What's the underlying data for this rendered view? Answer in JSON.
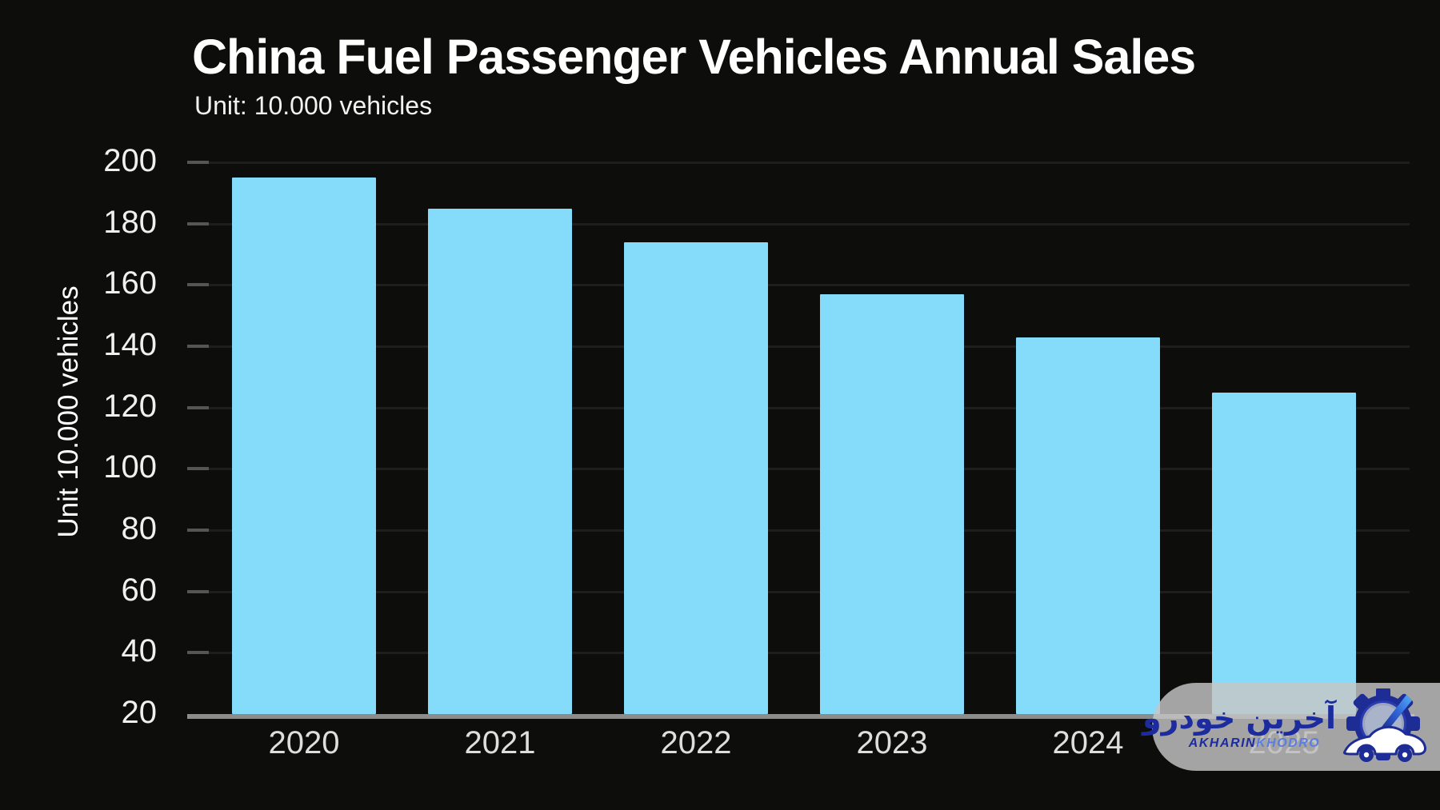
{
  "header": {
    "title": "China Fuel Passenger Vehicles Annual Sales",
    "subtitle": "Unit: 10.000 vehicles"
  },
  "chart_data": {
    "type": "bar",
    "title": "China Fuel Passenger Vehicles Annual Sales",
    "subtitle": "Unit: 10.000 vehicles",
    "categories": [
      "2020",
      "2021",
      "2022",
      "2023",
      "2024",
      "2025"
    ],
    "values": [
      195,
      185,
      174,
      157,
      143,
      125
    ],
    "xlabel": "",
    "ylabel": "Unit 10.000 vehicles",
    "ylim": [
      20,
      200
    ],
    "yticks": [
      200,
      180,
      160,
      140,
      120,
      100,
      80,
      60,
      40,
      20
    ],
    "grid": true,
    "legend": false,
    "bar_color": "#85DBFA",
    "background_color": "#0d0d0b",
    "axis_line_color": "#8c8c8c",
    "tick_text_color": "#f0f0f0"
  },
  "watermark": {
    "persian_text": "آخرین خودرو",
    "latin_bold": "AKHARIN",
    "latin_light": "KHODRO",
    "colors": {
      "pill": "rgba(198,198,198,0.82)",
      "text_dark": "#1c2b9d",
      "text_light": "#5b7de0"
    }
  }
}
